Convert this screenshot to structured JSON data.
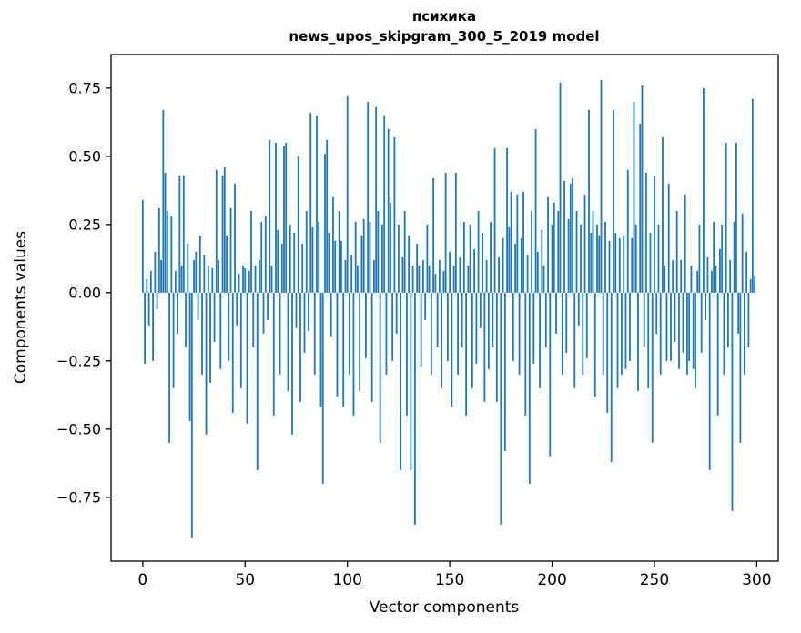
{
  "figure": {
    "title": "психика",
    "subtitle": "news_upos_skipgram_300_5_2019 model",
    "xlabel": "Vector components",
    "ylabel": "Components values"
  },
  "chart_data": {
    "type": "bar",
    "title": "психика",
    "subtitle": "news_upos_skipgram_300_5_2019 model",
    "xlabel": "Vector components",
    "ylabel": "Components values",
    "bar_color": "#1f77b4",
    "grid": false,
    "legend": null,
    "xlim": [
      -15.5,
      310.5
    ],
    "ylim": [
      -0.984,
      0.873
    ],
    "x_ticks": [
      0,
      50,
      100,
      150,
      200,
      250,
      300
    ],
    "x_tick_labels": [
      "0",
      "50",
      "100",
      "150",
      "200",
      "250",
      "300"
    ],
    "y_ticks": [
      0.75,
      0.5,
      0.25,
      0.0,
      -0.25,
      -0.5,
      -0.75
    ],
    "y_tick_labels": [
      "0.75",
      "0.50",
      "0.25",
      "0.00",
      "−0.25",
      "−0.50",
      "−0.75"
    ],
    "x": "index 0..299",
    "values": [
      0.34,
      -0.26,
      0.05,
      -0.12,
      0.08,
      -0.25,
      0.15,
      -0.06,
      0.31,
      0.12,
      0.67,
      0.44,
      0.3,
      -0.55,
      0.28,
      -0.35,
      0.08,
      -0.15,
      0.43,
      0.1,
      0.43,
      -0.2,
      0.18,
      -0.47,
      -0.9,
      0.12,
      0.15,
      -0.1,
      0.21,
      -0.3,
      0.14,
      -0.52,
      0.1,
      -0.33,
      0.09,
      -0.18,
      0.45,
      0.12,
      -0.28,
      0.43,
      0.46,
      0.21,
      -0.25,
      0.31,
      -0.44,
      0.4,
      -0.12,
      0.07,
      -0.35,
      0.1,
      0.09,
      -0.48,
      0.08,
      0.3,
      -0.2,
      0.1,
      -0.65,
      0.12,
      0.26,
      -0.15,
      0.28,
      -0.1,
      0.56,
      0.1,
      -0.45,
      0.55,
      0.23,
      -0.3,
      0.18,
      0.54,
      0.55,
      -0.36,
      0.25,
      -0.52,
      0.22,
      -0.13,
      0.5,
      -0.4,
      0.18,
      -0.22,
      0.3,
      -0.14,
      0.66,
      0.24,
      -0.3,
      0.65,
      0.26,
      -0.42,
      -0.7,
      0.51,
      0.56,
      0.22,
      -0.16,
      0.35,
      0.19,
      -0.38,
      0.3,
      0.19,
      -0.42,
      0.12,
      0.72,
      -0.3,
      0.14,
      -0.45,
      0.26,
      0.1,
      -0.36,
      0.21,
      0.27,
      -0.24,
      0.7,
      0.26,
      -0.4,
      0.12,
      0.68,
      0.3,
      -0.55,
      0.25,
      0.65,
      -0.3,
      0.6,
      0.33,
      -0.25,
      0.57,
      -0.15,
      0.25,
      -0.65,
      0.13,
      0.3,
      -0.45,
      0.21,
      -0.65,
      0.1,
      -0.85,
      0.18,
      0.1,
      -0.27,
      0.12,
      -0.1,
      0.25,
      0.1,
      -0.3,
      0.42,
      0.07,
      -0.2,
      0.12,
      -0.35,
      0.08,
      0.44,
      -0.25,
      0.15,
      -0.42,
      0.1,
      0.44,
      -0.3,
      0.13,
      -0.2,
      0.26,
      -0.45,
      0.1,
      0.25,
      -0.35,
      0.16,
      -0.26,
      0.3,
      -0.13,
      0.22,
      -0.4,
      0.12,
      -0.28,
      0.26,
      -0.2,
      0.53,
      -0.4,
      0.13,
      -0.85,
      0.2,
      -0.58,
      0.53,
      0.24,
      0.37,
      -0.25,
      0.18,
      0.36,
      -0.3,
      0.2,
      0.37,
      -0.45,
      0.14,
      -0.7,
      0.3,
      -0.26,
      0.6,
      0.15,
      -0.35,
      0.23,
      0.1,
      -0.2,
      0.35,
      -0.6,
      0.25,
      0.33,
      -0.15,
      0.3,
      0.77,
      -0.3,
      0.41,
      -0.22,
      0.27,
      0.4,
      0.42,
      -0.35,
      0.3,
      -0.12,
      0.25,
      -0.3,
      0.36,
      -0.24,
      0.67,
      0.22,
      0.3,
      -0.38,
      0.25,
      0.21,
      0.78,
      -0.3,
      0.26,
      -0.44,
      0.19,
      -0.62,
      0.67,
      0.22,
      -0.35,
      0.2,
      -0.3,
      0.21,
      -0.28,
      0.45,
      -0.25,
      0.2,
      0.7,
      0.25,
      -0.36,
      0.62,
      0.76,
      -0.2,
      0.44,
      -0.35,
      0.22,
      -0.55,
      0.43,
      -0.15,
      0.25,
      -0.3,
      0.57,
      0.1,
      -0.25,
      0.4,
      -0.25,
      0.12,
      -0.18,
      0.3,
      -0.28,
      0.12,
      -0.22,
      0.36,
      -0.3,
      -0.25,
      0.1,
      -0.28,
      -0.35,
      0.08,
      0.25,
      -0.22,
      0.75,
      -0.1,
      0.13,
      -0.65,
      0.08,
      0.26,
      0.1,
      -0.45,
      0.16,
      0.25,
      -0.3,
      0.55,
      -0.2,
      0.12,
      -0.8,
      0.26,
      0.55,
      -0.15,
      -0.55,
      0.29,
      -0.3,
      0.15,
      -0.2,
      0.05,
      0.71,
      0.06
    ]
  }
}
